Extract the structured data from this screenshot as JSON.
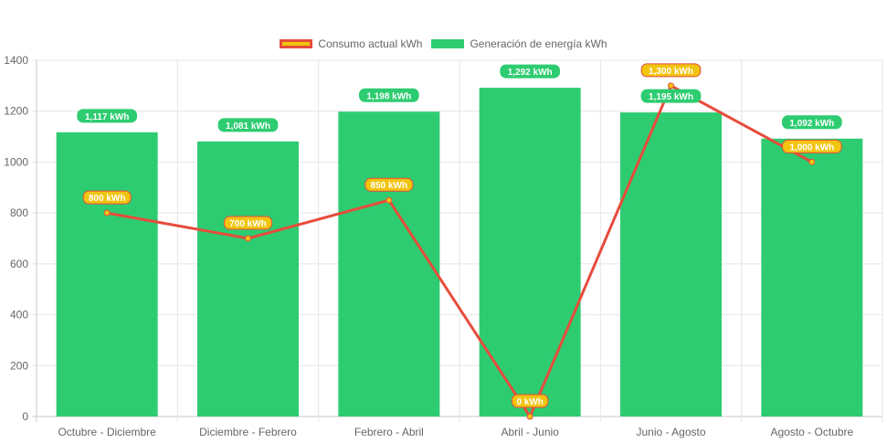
{
  "chart_data": {
    "type": "bar",
    "categories": [
      "Octubre - Diciembre",
      "Diciembre - Febrero",
      "Febrero - Abril",
      "Abril - Junio",
      "Junio - Agosto",
      "Agosto - Octubre"
    ],
    "ylim": [
      0,
      1400
    ],
    "yticks": [
      0,
      200,
      400,
      600,
      800,
      1000,
      1200,
      1400
    ],
    "grid": true,
    "legend_position": "top",
    "series": [
      {
        "name": "Consumo actual kWh",
        "type": "line",
        "values": [
          800,
          700,
          850,
          0,
          1300,
          1000
        ],
        "labels": [
          "800 kWh",
          "700 kWh",
          "850 kWh",
          "0 kWh",
          "1,300 kWh",
          "1,000 kWh"
        ],
        "color": "#f1c40f",
        "border": "#e74c3c"
      },
      {
        "name": "Generación de energía kWh",
        "type": "bar",
        "values": [
          1117,
          1081,
          1198,
          1292,
          1195,
          1092
        ],
        "labels": [
          "1,117 kWh",
          "1,081 kWh",
          "1,198 kWh",
          "1,292 kWh",
          "1,195 kWh",
          "1,092 kWh"
        ],
        "color": "#2ecc71",
        "border": "#2ecc71"
      }
    ]
  }
}
